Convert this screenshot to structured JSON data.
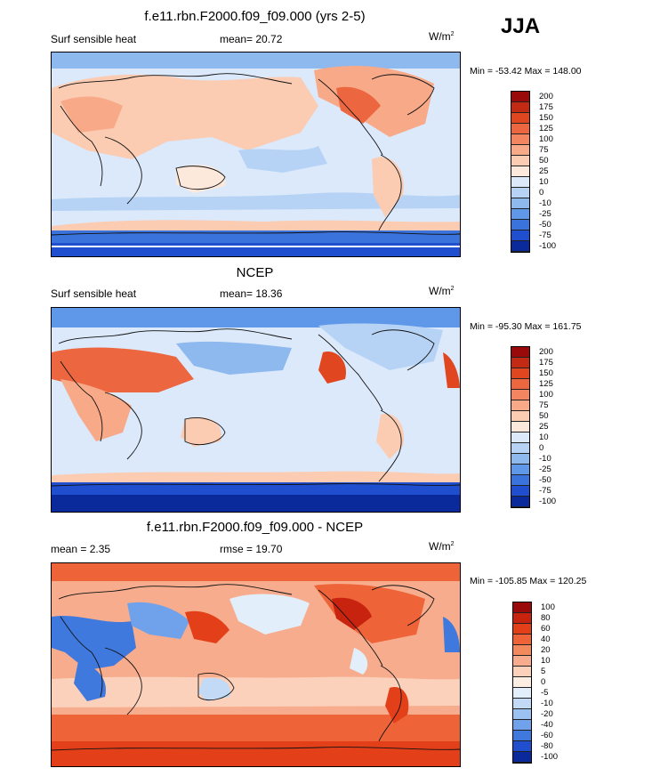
{
  "season": "JJA",
  "panels": [
    {
      "title": "f.e11.rbn.F2000.f09_f09.000 (yrs 2-5)",
      "left_label": "Surf sensible heat",
      "stat_label": "mean=",
      "stat_value": "20.72",
      "units_base": "W/m",
      "units_exp": "2",
      "minmax": "Min = -53.42 Max = 148.00",
      "levels": [
        "200",
        "175",
        "150",
        "125",
        "100",
        "75",
        "50",
        "25",
        "10",
        "0",
        "-10",
        "-25",
        "-50",
        "-75",
        "-100"
      ],
      "colors": [
        "#9b0a0a",
        "#c32a14",
        "#e0461f",
        "#ec6640",
        "#f38560",
        "#f7a988",
        "#fbcbb2",
        "#fde9dc",
        "#dbe9fa",
        "#b6d3f5",
        "#8db9ef",
        "#5f98e8",
        "#3b73dc",
        "#1f4fcf",
        "#0a2a9c"
      ]
    },
    {
      "title": "NCEP",
      "left_label": "Surf sensible heat",
      "stat_label": "mean=",
      "stat_value": "18.36",
      "units_base": "W/m",
      "units_exp": "2",
      "minmax": "Min = -95.30 Max = 161.75",
      "levels": [
        "200",
        "175",
        "150",
        "125",
        "100",
        "75",
        "50",
        "25",
        "10",
        "0",
        "-10",
        "-25",
        "-50",
        "-75",
        "-100"
      ],
      "colors": [
        "#9b0a0a",
        "#c32a14",
        "#e0461f",
        "#ec6640",
        "#f38560",
        "#f7a988",
        "#fbcbb2",
        "#fde9dc",
        "#dbe9fa",
        "#b6d3f5",
        "#8db9ef",
        "#5f98e8",
        "#3b73dc",
        "#1f4fcf",
        "#0a2a9c"
      ]
    },
    {
      "title": "f.e11.rbn.F2000.f09_f09.000 - NCEP",
      "left_label": "mean =   2.35",
      "stat_label": "rmse =",
      "stat_value": "19.70",
      "units_base": "W/m",
      "units_exp": "2",
      "minmax": "Min = -105.85 Max = 120.25",
      "levels": [
        "100",
        "80",
        "60",
        "40",
        "20",
        "10",
        "5",
        "0",
        "-5",
        "-10",
        "-20",
        "-40",
        "-60",
        "-80",
        "-100"
      ],
      "colors": [
        "#9b0a0a",
        "#c8230f",
        "#e3401a",
        "#ee6338",
        "#f38a5e",
        "#f7ad8d",
        "#fbd1bb",
        "#fdeee4",
        "#e3eefb",
        "#c2daf6",
        "#9cc2f1",
        "#6fa2ea",
        "#4079de",
        "#1f4fcf",
        "#0a2a9c"
      ]
    }
  ]
}
